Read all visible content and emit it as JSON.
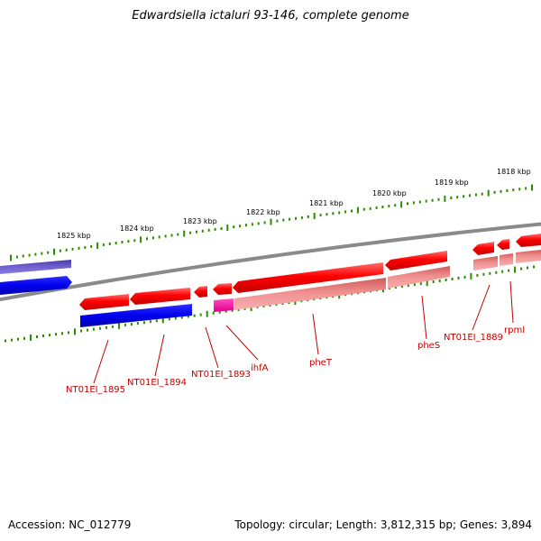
{
  "title": "Edwardsiella ictaluri 93-146, complete genome",
  "footer": {
    "accession": "Accession: NC_012779",
    "topology": "Topology: circular; Length: 3,812,315 bp; Genes: 3,894"
  },
  "scale_labels": [
    "1825 kbp",
    "1824 kbp",
    "1823 kbp",
    "1822 kbp",
    "1821 kbp",
    "1820 kbp",
    "1819 kbp",
    "1818 kbp"
  ],
  "gene_labels": [
    "NT01EI_1895",
    "NT01EI_1894",
    "NT01EI_1893",
    "ihfA",
    "pheT",
    "pheS",
    "NT01EI_1889",
    "rpmI"
  ],
  "colors": {
    "cds": "#ff0000",
    "cds_light": "#f08c8c",
    "blue": "#0000ee",
    "purple": "#6a5acd",
    "magenta": "#ff1aa3",
    "backbone": "#808080",
    "tick": "#2e8b00",
    "label": "#c00000"
  }
}
